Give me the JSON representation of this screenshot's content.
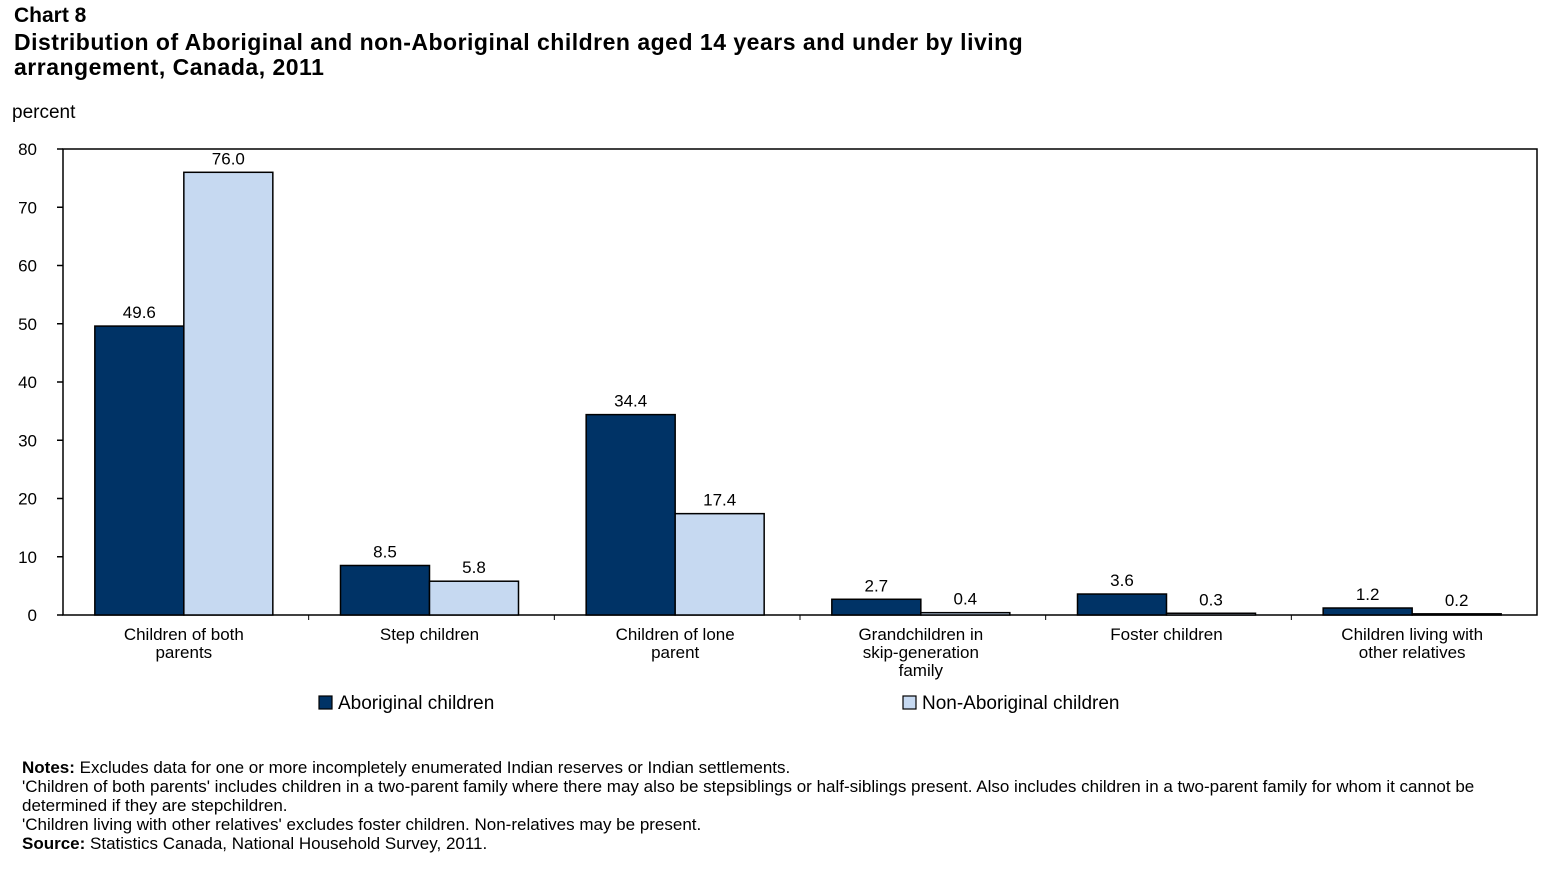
{
  "chart_number": "Chart 8",
  "title": "Distribution of Aboriginal and non-Aboriginal children aged 14 years and under by living arrangement, Canada, 2011",
  "chart_data": {
    "type": "bar",
    "title": "Distribution of Aboriginal and non-Aboriginal children aged 14 years and under by living arrangement, Canada, 2011",
    "ylabel": "percent",
    "xlabel": "",
    "ylim": [
      0,
      80
    ],
    "yticks": [
      0,
      10,
      20,
      30,
      40,
      50,
      60,
      70,
      80
    ],
    "grid": false,
    "legend_position": "bottom",
    "categories": [
      [
        "Children of both",
        "parents"
      ],
      [
        "Step children"
      ],
      [
        "Children of lone",
        "parent"
      ],
      [
        "Grandchildren in",
        "skip-generation",
        "family"
      ],
      [
        "Foster children"
      ],
      [
        "Children living with",
        "other relatives"
      ]
    ],
    "series": [
      {
        "name": "Aboriginal children",
        "color": "#003366",
        "values": [
          49.6,
          8.5,
          34.4,
          2.7,
          3.6,
          1.2
        ],
        "labels": [
          "49.6",
          "8.5",
          "34.4",
          "2.7",
          "3.6",
          "1.2"
        ]
      },
      {
        "name": "Non-Aboriginal children",
        "color": "#c6d9f1",
        "values": [
          76.0,
          5.8,
          17.4,
          0.4,
          0.3,
          0.2
        ],
        "labels": [
          "76.0",
          "5.8",
          "17.4",
          "0.4",
          "0.3",
          "0.2"
        ]
      }
    ]
  },
  "notes": {
    "notes_label": "Notes:",
    "line1": " Excludes data for one or more incompletely enumerated Indian reserves or Indian settlements.",
    "line2": "'Children of both parents' includes children in a two-parent family where there may also be stepsiblings or half-siblings present. Also includes children in a two-parent family for whom it cannot be determined if they are stepchildren.",
    "line3": "'Children living with other relatives' excludes foster children. Non-relatives may be present.",
    "source_label": "Source:",
    "source": " Statistics Canada, National Household Survey, 2011."
  }
}
